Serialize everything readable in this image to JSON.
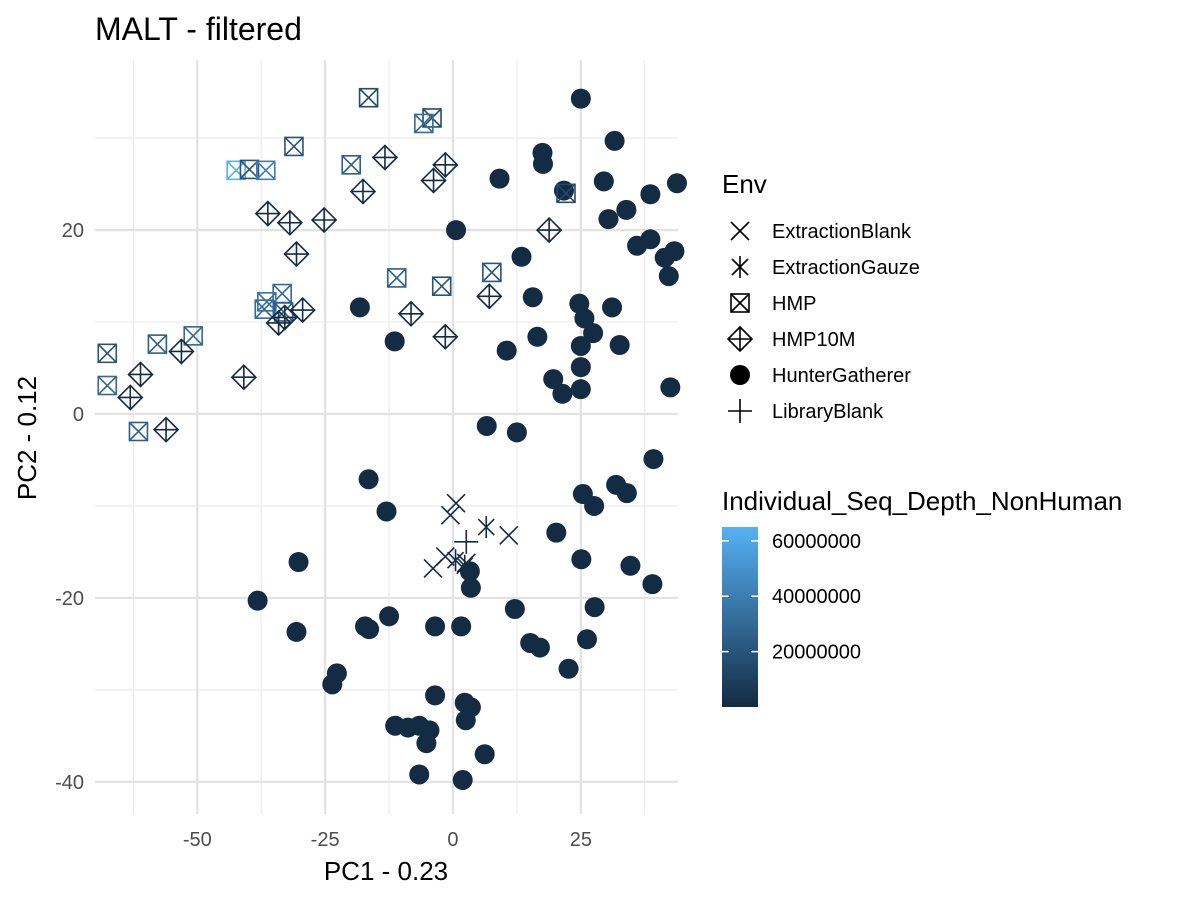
{
  "chart_data": {
    "type": "scatter",
    "title": "MALT - filtered",
    "xlabel": "PC1 - 0.23",
    "ylabel": "PC2 - 0.12",
    "xlim": [
      -70,
      44
    ],
    "ylim": [
      -43.5,
      38.5
    ],
    "x_ticks": [
      -50,
      -25,
      0,
      25
    ],
    "x_tick_labels": [
      "-50",
      "-25",
      "0",
      "25"
    ],
    "y_ticks": [
      -40,
      -20,
      0,
      20
    ],
    "y_tick_labels": [
      "-40",
      "-20",
      "0",
      "20"
    ],
    "grid": true,
    "legend_position": "right",
    "shape_legend": {
      "title": "Env",
      "entries": [
        {
          "label": "ExtractionBlank",
          "shape": "x"
        },
        {
          "label": "ExtractionGauze",
          "shape": "asterisk"
        },
        {
          "label": "HMP",
          "shape": "square-x"
        },
        {
          "label": "HMP10M",
          "shape": "diamond-plus"
        },
        {
          "label": "HunterGatherer",
          "shape": "filled-circle"
        },
        {
          "label": "LibraryBlank",
          "shape": "plus"
        }
      ]
    },
    "color_legend": {
      "title": "Individual_Seq_Depth_NonHuman",
      "low_color": "#132b43",
      "high_color": "#56b1f7",
      "min": 0,
      "max": 65000000,
      "ticks": [
        20000000,
        40000000,
        60000000
      ],
      "tick_labels": [
        "20000000",
        "40000000",
        "60000000"
      ]
    },
    "series": [
      {
        "name": "HunterGatherer",
        "shape": "filled-circle",
        "points": [
          [
            25.0,
            34.3
          ],
          [
            31.6,
            29.7
          ],
          [
            17.5,
            28.4
          ],
          [
            17.6,
            27.2
          ],
          [
            9.1,
            25.6
          ],
          [
            21.7,
            24.3
          ],
          [
            29.5,
            25.3
          ],
          [
            43.8,
            25.1
          ],
          [
            38.6,
            23.9
          ],
          [
            33.9,
            22.2
          ],
          [
            30.4,
            21.2
          ],
          [
            0.6,
            20.0
          ],
          [
            38.6,
            19.0
          ],
          [
            36.0,
            18.3
          ],
          [
            43.3,
            17.7
          ],
          [
            41.4,
            17.0
          ],
          [
            13.4,
            17.1
          ],
          [
            42.2,
            15.0
          ],
          [
            15.6,
            12.7
          ],
          [
            24.7,
            12.0
          ],
          [
            31.1,
            11.6
          ],
          [
            25.7,
            10.4
          ],
          [
            27.4,
            8.8
          ],
          [
            16.5,
            8.4
          ],
          [
            -18.2,
            11.6
          ],
          [
            -11.4,
            7.9
          ],
          [
            10.5,
            6.9
          ],
          [
            25.0,
            7.4
          ],
          [
            32.6,
            7.5
          ],
          [
            25.0,
            5.1
          ],
          [
            19.6,
            3.8
          ],
          [
            42.5,
            2.9
          ],
          [
            25.0,
            2.7
          ],
          [
            21.4,
            2.2
          ],
          [
            6.6,
            -1.3
          ],
          [
            12.5,
            -2.0
          ],
          [
            39.2,
            -4.9
          ],
          [
            -16.5,
            -7.1
          ],
          [
            31.9,
            -7.7
          ],
          [
            25.4,
            -8.7
          ],
          [
            34.0,
            -8.6
          ],
          [
            27.6,
            -10.0
          ],
          [
            -13.0,
            -10.6
          ],
          [
            20.2,
            -12.9
          ],
          [
            25.1,
            -15.8
          ],
          [
            -30.2,
            -16.1
          ],
          [
            34.7,
            -16.5
          ],
          [
            3.3,
            -17.1
          ],
          [
            39.0,
            -18.5
          ],
          [
            3.5,
            -18.9
          ],
          [
            -38.2,
            -20.3
          ],
          [
            12.1,
            -21.2
          ],
          [
            27.7,
            -21.0
          ],
          [
            -12.5,
            -22.0
          ],
          [
            -17.2,
            -23.1
          ],
          [
            -16.4,
            -23.4
          ],
          [
            -3.5,
            -23.1
          ],
          [
            1.6,
            -23.1
          ],
          [
            -30.6,
            -23.7
          ],
          [
            15.1,
            -24.9
          ],
          [
            26.2,
            -24.5
          ],
          [
            17.0,
            -25.4
          ],
          [
            22.6,
            -27.7
          ],
          [
            -22.7,
            -28.2
          ],
          [
            -23.6,
            -29.4
          ],
          [
            -3.5,
            -30.6
          ],
          [
            2.3,
            -31.4
          ],
          [
            3.5,
            -31.9
          ],
          [
            2.5,
            -33.3
          ],
          [
            -11.3,
            -33.9
          ],
          [
            -8.8,
            -34.1
          ],
          [
            -6.6,
            -33.9
          ],
          [
            -4.6,
            -34.4
          ],
          [
            -5.2,
            -35.8
          ],
          [
            6.2,
            -37.0
          ],
          [
            -6.6,
            -39.2
          ],
          [
            1.9,
            -39.8
          ]
        ]
      },
      {
        "name": "HMP",
        "shape": "square-x",
        "points": [
          [
            -16.5,
            34.4,
            15000000
          ],
          [
            -4.1,
            32.2,
            15000000
          ],
          [
            -5.7,
            31.6,
            30000000
          ],
          [
            -31.1,
            29.1,
            20000000
          ],
          [
            -42.4,
            26.5,
            65000000
          ],
          [
            -39.8,
            26.6,
            20000000
          ],
          [
            -36.6,
            26.5,
            40000000
          ],
          [
            -19.9,
            27.1,
            25000000
          ],
          [
            22.1,
            24.0,
            15000000
          ],
          [
            -11.0,
            14.8,
            25000000
          ],
          [
            7.6,
            15.4,
            20000000
          ],
          [
            -2.2,
            13.9,
            20000000
          ],
          [
            -33.4,
            13.1,
            30000000
          ],
          [
            -36.4,
            12.2,
            35000000
          ],
          [
            -36.9,
            11.4,
            30000000
          ],
          [
            -33.1,
            11.1,
            25000000
          ],
          [
            -50.8,
            8.5,
            30000000
          ],
          [
            -57.8,
            7.6,
            25000000
          ],
          [
            -67.6,
            6.6,
            20000000
          ],
          [
            -67.6,
            3.1,
            30000000
          ],
          [
            -61.5,
            -1.9,
            25000000
          ]
        ]
      },
      {
        "name": "HMP10M",
        "shape": "diamond-plus",
        "points": [
          [
            -13.3,
            27.9
          ],
          [
            -1.5,
            27.1
          ],
          [
            -3.8,
            25.4
          ],
          [
            -17.6,
            24.2
          ],
          [
            -36.2,
            21.8
          ],
          [
            -31.9,
            20.8
          ],
          [
            -25.2,
            21.1
          ],
          [
            18.8,
            20.0
          ],
          [
            -30.6,
            17.4
          ],
          [
            7.1,
            12.8
          ],
          [
            -29.4,
            11.3
          ],
          [
            -8.2,
            10.9
          ],
          [
            -32.9,
            10.5
          ],
          [
            -34.1,
            9.9
          ],
          [
            -1.5,
            8.4
          ],
          [
            -53.1,
            6.8
          ],
          [
            -61.1,
            4.3
          ],
          [
            -40.9,
            4.0
          ],
          [
            -63.1,
            1.8
          ],
          [
            -56.1,
            -1.7
          ]
        ]
      },
      {
        "name": "ExtractionBlank",
        "shape": "x",
        "points": [
          [
            -0.5,
            -11.0
          ],
          [
            0.6,
            -9.7
          ],
          [
            10.9,
            -13.2
          ],
          [
            -3.9,
            -16.8
          ],
          [
            -1.5,
            -15.5
          ],
          [
            2.6,
            -16.2
          ]
        ]
      },
      {
        "name": "ExtractionGauze",
        "shape": "asterisk",
        "points": [
          [
            6.5,
            -12.3
          ],
          [
            0.5,
            -15.9
          ],
          [
            2.3,
            -16.5
          ]
        ]
      },
      {
        "name": "LibraryBlank",
        "shape": "plus",
        "points": [
          [
            2.6,
            -13.9
          ]
        ]
      }
    ]
  }
}
